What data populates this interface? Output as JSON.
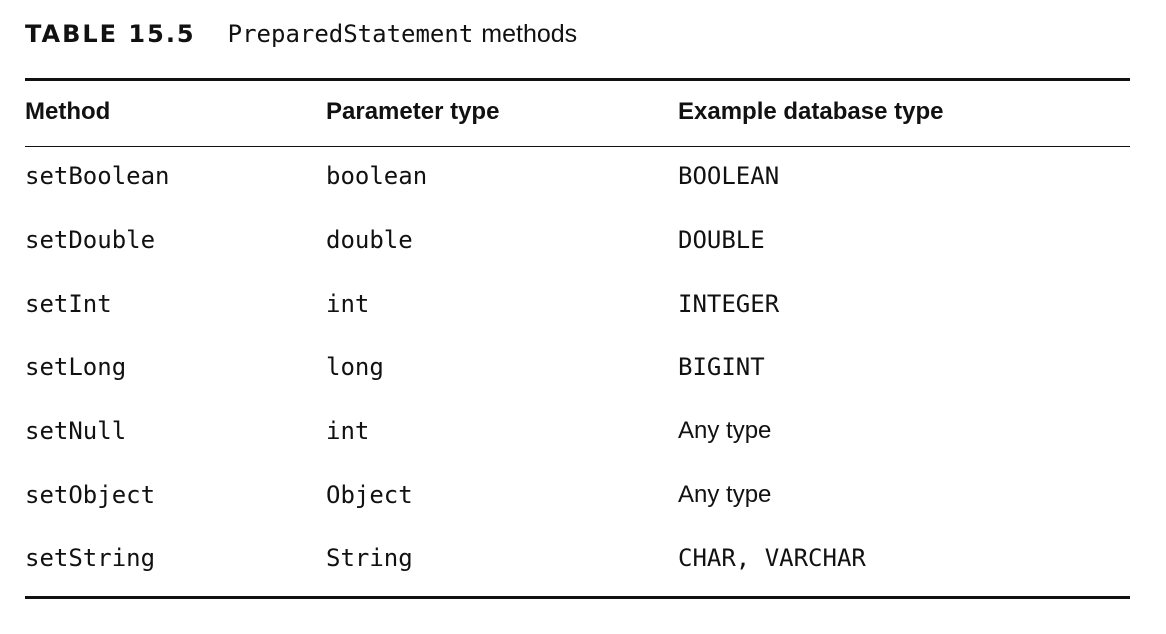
{
  "caption": {
    "label": "TABLE 15.5",
    "class_name": "PreparedStatement",
    "suffix": "methods"
  },
  "table": {
    "headers": [
      "Method",
      "Parameter type",
      "Example database type"
    ],
    "rows": [
      {
        "method": "setBoolean",
        "param_type": "boolean",
        "db_type": "BOOLEAN"
      },
      {
        "method": "setDouble",
        "param_type": "double",
        "db_type": "DOUBLE"
      },
      {
        "method": "setInt",
        "param_type": "int",
        "db_type": "INTEGER"
      },
      {
        "method": "setLong",
        "param_type": "long",
        "db_type": "BIGINT"
      },
      {
        "method": "setNull",
        "param_type": "int",
        "db_type": "Any type"
      },
      {
        "method": "setObject",
        "param_type": "Object",
        "db_type": "Any type"
      },
      {
        "method": "setString",
        "param_type": "String",
        "db_type": "CHAR, VARCHAR"
      }
    ]
  }
}
